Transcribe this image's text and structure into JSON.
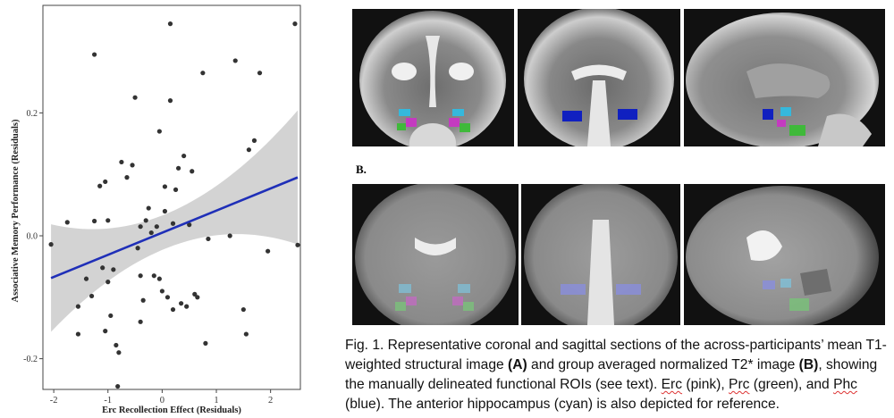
{
  "chart_data": {
    "type": "scatter",
    "xlabel": "Erc Recollection Effect (Residuals)",
    "ylabel": "Associative Memory Performance (Residuals)",
    "xlim": [
      -2.2,
      2.55
    ],
    "ylim": [
      -0.25,
      0.375
    ],
    "x_ticks": [
      "-2",
      "-1",
      "0",
      "1",
      "2"
    ],
    "x_tick_values": [
      -2,
      -1,
      0,
      1,
      2
    ],
    "y_ticks": [
      "-0.2",
      "0.0",
      "0.2"
    ],
    "y_tick_values": [
      -0.2,
      0.0,
      0.2
    ],
    "regression": {
      "intercept": 0.005,
      "slope": 0.036,
      "x_range": [
        -2.05,
        2.5
      ]
    },
    "points": [
      [
        -2.05,
        -0.014
      ],
      [
        -1.75,
        0.022
      ],
      [
        -1.55,
        -0.115
      ],
      [
        -1.3,
        -0.098
      ],
      [
        -1.25,
        0.024
      ],
      [
        -1.25,
        0.295
      ],
      [
        -1.15,
        0.081
      ],
      [
        -1.1,
        -0.052
      ],
      [
        -1.05,
        0.088
      ],
      [
        -1.0,
        -0.075
      ],
      [
        -1.05,
        -0.155
      ],
      [
        -1.0,
        0.025
      ],
      [
        -0.9,
        -0.055
      ],
      [
        -0.95,
        -0.13
      ],
      [
        -0.85,
        -0.178
      ],
      [
        -0.8,
        -0.19
      ],
      [
        -0.82,
        -0.245
      ],
      [
        -0.75,
        0.12
      ],
      [
        -0.65,
        0.095
      ],
      [
        -0.55,
        0.115
      ],
      [
        -0.5,
        0.225
      ],
      [
        -0.45,
        -0.02
      ],
      [
        -0.4,
        0.015
      ],
      [
        -0.4,
        -0.065
      ],
      [
        -0.35,
        -0.105
      ],
      [
        -0.3,
        0.025
      ],
      [
        -0.2,
        0.005
      ],
      [
        -0.15,
        -0.065
      ],
      [
        -0.1,
        0.015
      ],
      [
        -0.05,
        0.17
      ],
      [
        -0.05,
        -0.07
      ],
      [
        0.0,
        -0.09
      ],
      [
        0.05,
        0.08
      ],
      [
        0.05,
        0.04
      ],
      [
        0.1,
        -0.1
      ],
      [
        0.15,
        0.345
      ],
      [
        0.15,
        0.22
      ],
      [
        0.2,
        0.02
      ],
      [
        0.25,
        0.075
      ],
      [
        0.3,
        0.11
      ],
      [
        0.35,
        -0.11
      ],
      [
        0.4,
        0.13
      ],
      [
        0.45,
        -0.115
      ],
      [
        0.5,
        0.018
      ],
      [
        0.55,
        0.105
      ],
      [
        0.6,
        -0.095
      ],
      [
        0.65,
        -0.1
      ],
      [
        0.75,
        0.265
      ],
      [
        0.8,
        -0.175
      ],
      [
        0.85,
        -0.005
      ],
      [
        1.25,
        0.0
      ],
      [
        1.35,
        0.285
      ],
      [
        1.5,
        -0.12
      ],
      [
        1.55,
        -0.16
      ],
      [
        1.6,
        0.14
      ],
      [
        1.7,
        0.155
      ],
      [
        1.8,
        0.265
      ],
      [
        1.95,
        -0.025
      ],
      [
        2.45,
        0.345
      ],
      [
        2.5,
        -0.015
      ],
      [
        -1.4,
        -0.07
      ],
      [
        -0.25,
        0.045
      ],
      [
        0.2,
        -0.12
      ],
      [
        -1.55,
        -0.16
      ],
      [
        -0.4,
        -0.14
      ]
    ]
  },
  "figure": {
    "label_b": "B."
  },
  "caption": {
    "p1": "Fig. 1. Representative coronal and sagittal sections of the across-participants’ mean T1-weighted structural image ",
    "a": "(A)",
    "p2": " and group averaged normalized T2* image ",
    "b": "(B)",
    "p3": ", showing the manually delineated functional ROIs (see text). ",
    "erc": "Erc",
    "p4": " (pink), ",
    "prc": "Prc",
    "p5": " (green), and ",
    "phc": "Phc",
    "p6": " (blue). The anterior hippocampus (cyan) is also depicted for reference."
  },
  "colors": {
    "regression_line": "#1f2fb8",
    "confidence_band": "#d3d3d3",
    "points": "#333333",
    "roi_erc": "#c43ac0",
    "roi_prc": "#3fb93a",
    "roi_phc": "#1020c0",
    "roi_hippocampus": "#35b8dc"
  }
}
